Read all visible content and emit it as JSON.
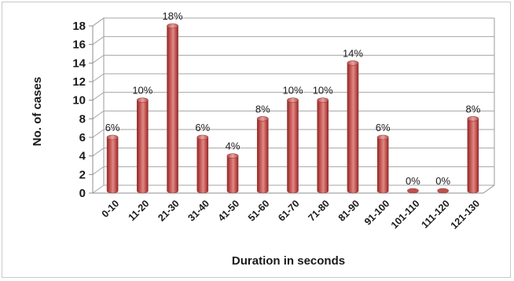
{
  "chart_data": {
    "type": "bar",
    "title": "",
    "xlabel": "Duration in seconds",
    "ylabel": "No. of cases",
    "ylim": [
      0,
      18
    ],
    "yticks": [
      0,
      2,
      4,
      6,
      8,
      10,
      12,
      14,
      16,
      18
    ],
    "grid": true,
    "style": "3d",
    "bar_color": "#c0504d",
    "categories": [
      "0-10",
      "11-20",
      "21-30",
      "31-40",
      "41-50",
      "51-60",
      "61-70",
      "71-80",
      "81-90",
      "91-100",
      "101-110",
      "111-120",
      "121-130"
    ],
    "values": [
      6,
      10,
      18,
      6,
      4,
      8,
      10,
      10,
      14,
      6,
      0,
      0,
      8
    ],
    "data_labels": [
      "6%",
      "10%",
      "18%",
      "6%",
      "4%",
      "8%",
      "10%",
      "10%",
      "14%",
      "6%",
      "0%",
      "0%",
      "8%"
    ]
  }
}
